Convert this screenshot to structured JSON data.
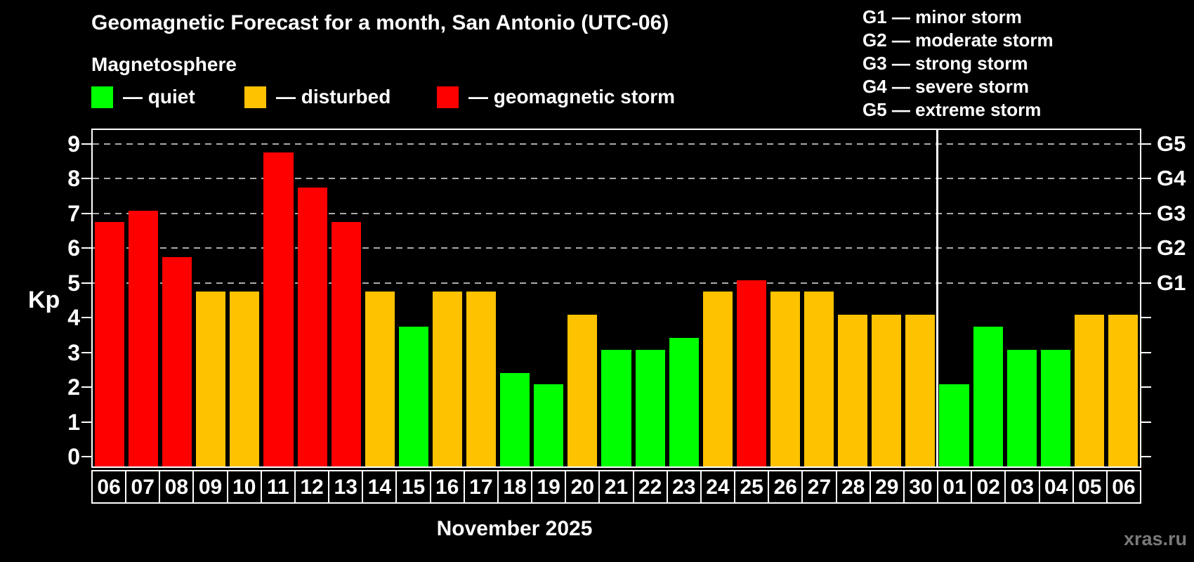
{
  "title": "Geomagnetic Forecast for a month, San Antonio (UTC-06)",
  "subtitle": "Magnetosphere",
  "legend": {
    "items": [
      {
        "status": "quiet",
        "label": "— quiet"
      },
      {
        "status": "disturbed",
        "label": "— disturbed"
      },
      {
        "status": "storm",
        "label": "— geomagnetic storm"
      }
    ]
  },
  "storm_scale": {
    "items": [
      "G1 — minor storm",
      "G2 — moderate storm",
      "G3 — strong storm",
      "G4 — severe storm",
      "G5 — extreme storm"
    ]
  },
  "axis": {
    "y_label": "Kp",
    "y_ticks": [
      0,
      1,
      2,
      3,
      4,
      5,
      6,
      7,
      8,
      9
    ],
    "g_labels": [
      {
        "kp": 5,
        "text": "G1"
      },
      {
        "kp": 6,
        "text": "G2"
      },
      {
        "kp": 7,
        "text": "G3"
      },
      {
        "kp": 8,
        "text": "G4"
      },
      {
        "kp": 9,
        "text": "G5"
      }
    ],
    "month_label": "November 2025"
  },
  "watermark": "xras.ru",
  "colors": {
    "quiet": "#00ff00",
    "disturbed": "#ffc200",
    "storm": "#ff0000",
    "axis": "#ffffff",
    "grid": "#aaaaaa",
    "background": "#000000",
    "watermark": "#7a7a7a"
  },
  "chart_data": {
    "type": "bar",
    "title": "Geomagnetic Forecast for a month, San Antonio (UTC-06)",
    "xlabel": "November 2025",
    "ylabel": "Kp",
    "ylim": [
      0,
      9.4
    ],
    "grid": "dashed horizontal at Kp 5-9",
    "gridlines_at": [
      5,
      6,
      7,
      8,
      9
    ],
    "legend_position": "top-left",
    "categories": [
      "06",
      "07",
      "08",
      "09",
      "10",
      "11",
      "12",
      "13",
      "14",
      "15",
      "16",
      "17",
      "18",
      "19",
      "20",
      "21",
      "22",
      "23",
      "24",
      "25",
      "26",
      "27",
      "28",
      "29",
      "30",
      "01",
      "02",
      "03",
      "04",
      "05",
      "06"
    ],
    "values": [
      6.67,
      7.0,
      5.67,
      4.67,
      4.67,
      8.67,
      7.67,
      6.67,
      4.67,
      3.67,
      4.67,
      4.67,
      2.33,
      2.0,
      4.0,
      3.0,
      3.0,
      3.33,
      4.67,
      5.0,
      4.67,
      4.67,
      4.0,
      4.0,
      4.0,
      2.0,
      3.67,
      3.0,
      3.0,
      4.0,
      4.0
    ],
    "status": [
      "storm",
      "storm",
      "storm",
      "disturbed",
      "disturbed",
      "storm",
      "storm",
      "storm",
      "disturbed",
      "quiet",
      "disturbed",
      "disturbed",
      "quiet",
      "quiet",
      "disturbed",
      "quiet",
      "quiet",
      "quiet",
      "disturbed",
      "storm",
      "disturbed",
      "disturbed",
      "disturbed",
      "disturbed",
      "disturbed",
      "quiet",
      "quiet",
      "quiet",
      "quiet",
      "disturbed",
      "disturbed"
    ],
    "month_divider_after_index": 24
  }
}
